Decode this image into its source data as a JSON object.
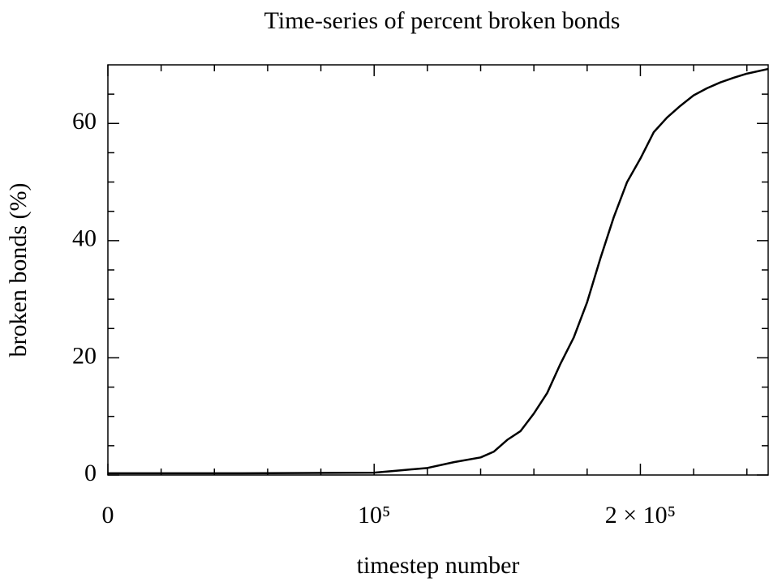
{
  "chart_data": {
    "type": "line",
    "title": "Time-series of percent broken bonds",
    "x_label": "timestep number",
    "y_label": "broken bonds (%)",
    "xlim": [
      0,
      248000
    ],
    "ylim": [
      0,
      70
    ],
    "xticks": [
      {
        "value": 0,
        "label": "0"
      },
      {
        "value": 100000,
        "label": "10⁵"
      },
      {
        "value": 200000,
        "label": "2 × 10⁵"
      }
    ],
    "xminorticks": [
      20000,
      40000,
      60000,
      80000,
      120000,
      140000,
      160000,
      180000,
      220000,
      240000
    ],
    "yticks": [
      0,
      20,
      40,
      60
    ],
    "yminorticks": [
      5,
      10,
      15,
      25,
      30,
      35,
      45,
      50,
      55,
      65
    ],
    "grid": false,
    "series": [
      {
        "name": "broken bonds",
        "color": "#000000",
        "x": [
          0,
          50000,
          100000,
          110000,
          120000,
          130000,
          140000,
          145000,
          150000,
          155000,
          160000,
          165000,
          170000,
          175000,
          180000,
          185000,
          190000,
          195000,
          200000,
          205000,
          210000,
          215000,
          220000,
          225000,
          230000,
          235000,
          240000,
          248000
        ],
        "values": [
          0.3,
          0.3,
          0.4,
          0.8,
          1.2,
          2.2,
          3,
          4,
          6,
          7.5,
          10.5,
          14,
          19,
          23.5,
          29.5,
          37,
          44,
          50,
          54,
          58.5,
          61,
          63,
          64.8,
          66,
          67,
          67.8,
          68.5,
          69.3
        ]
      }
    ]
  }
}
